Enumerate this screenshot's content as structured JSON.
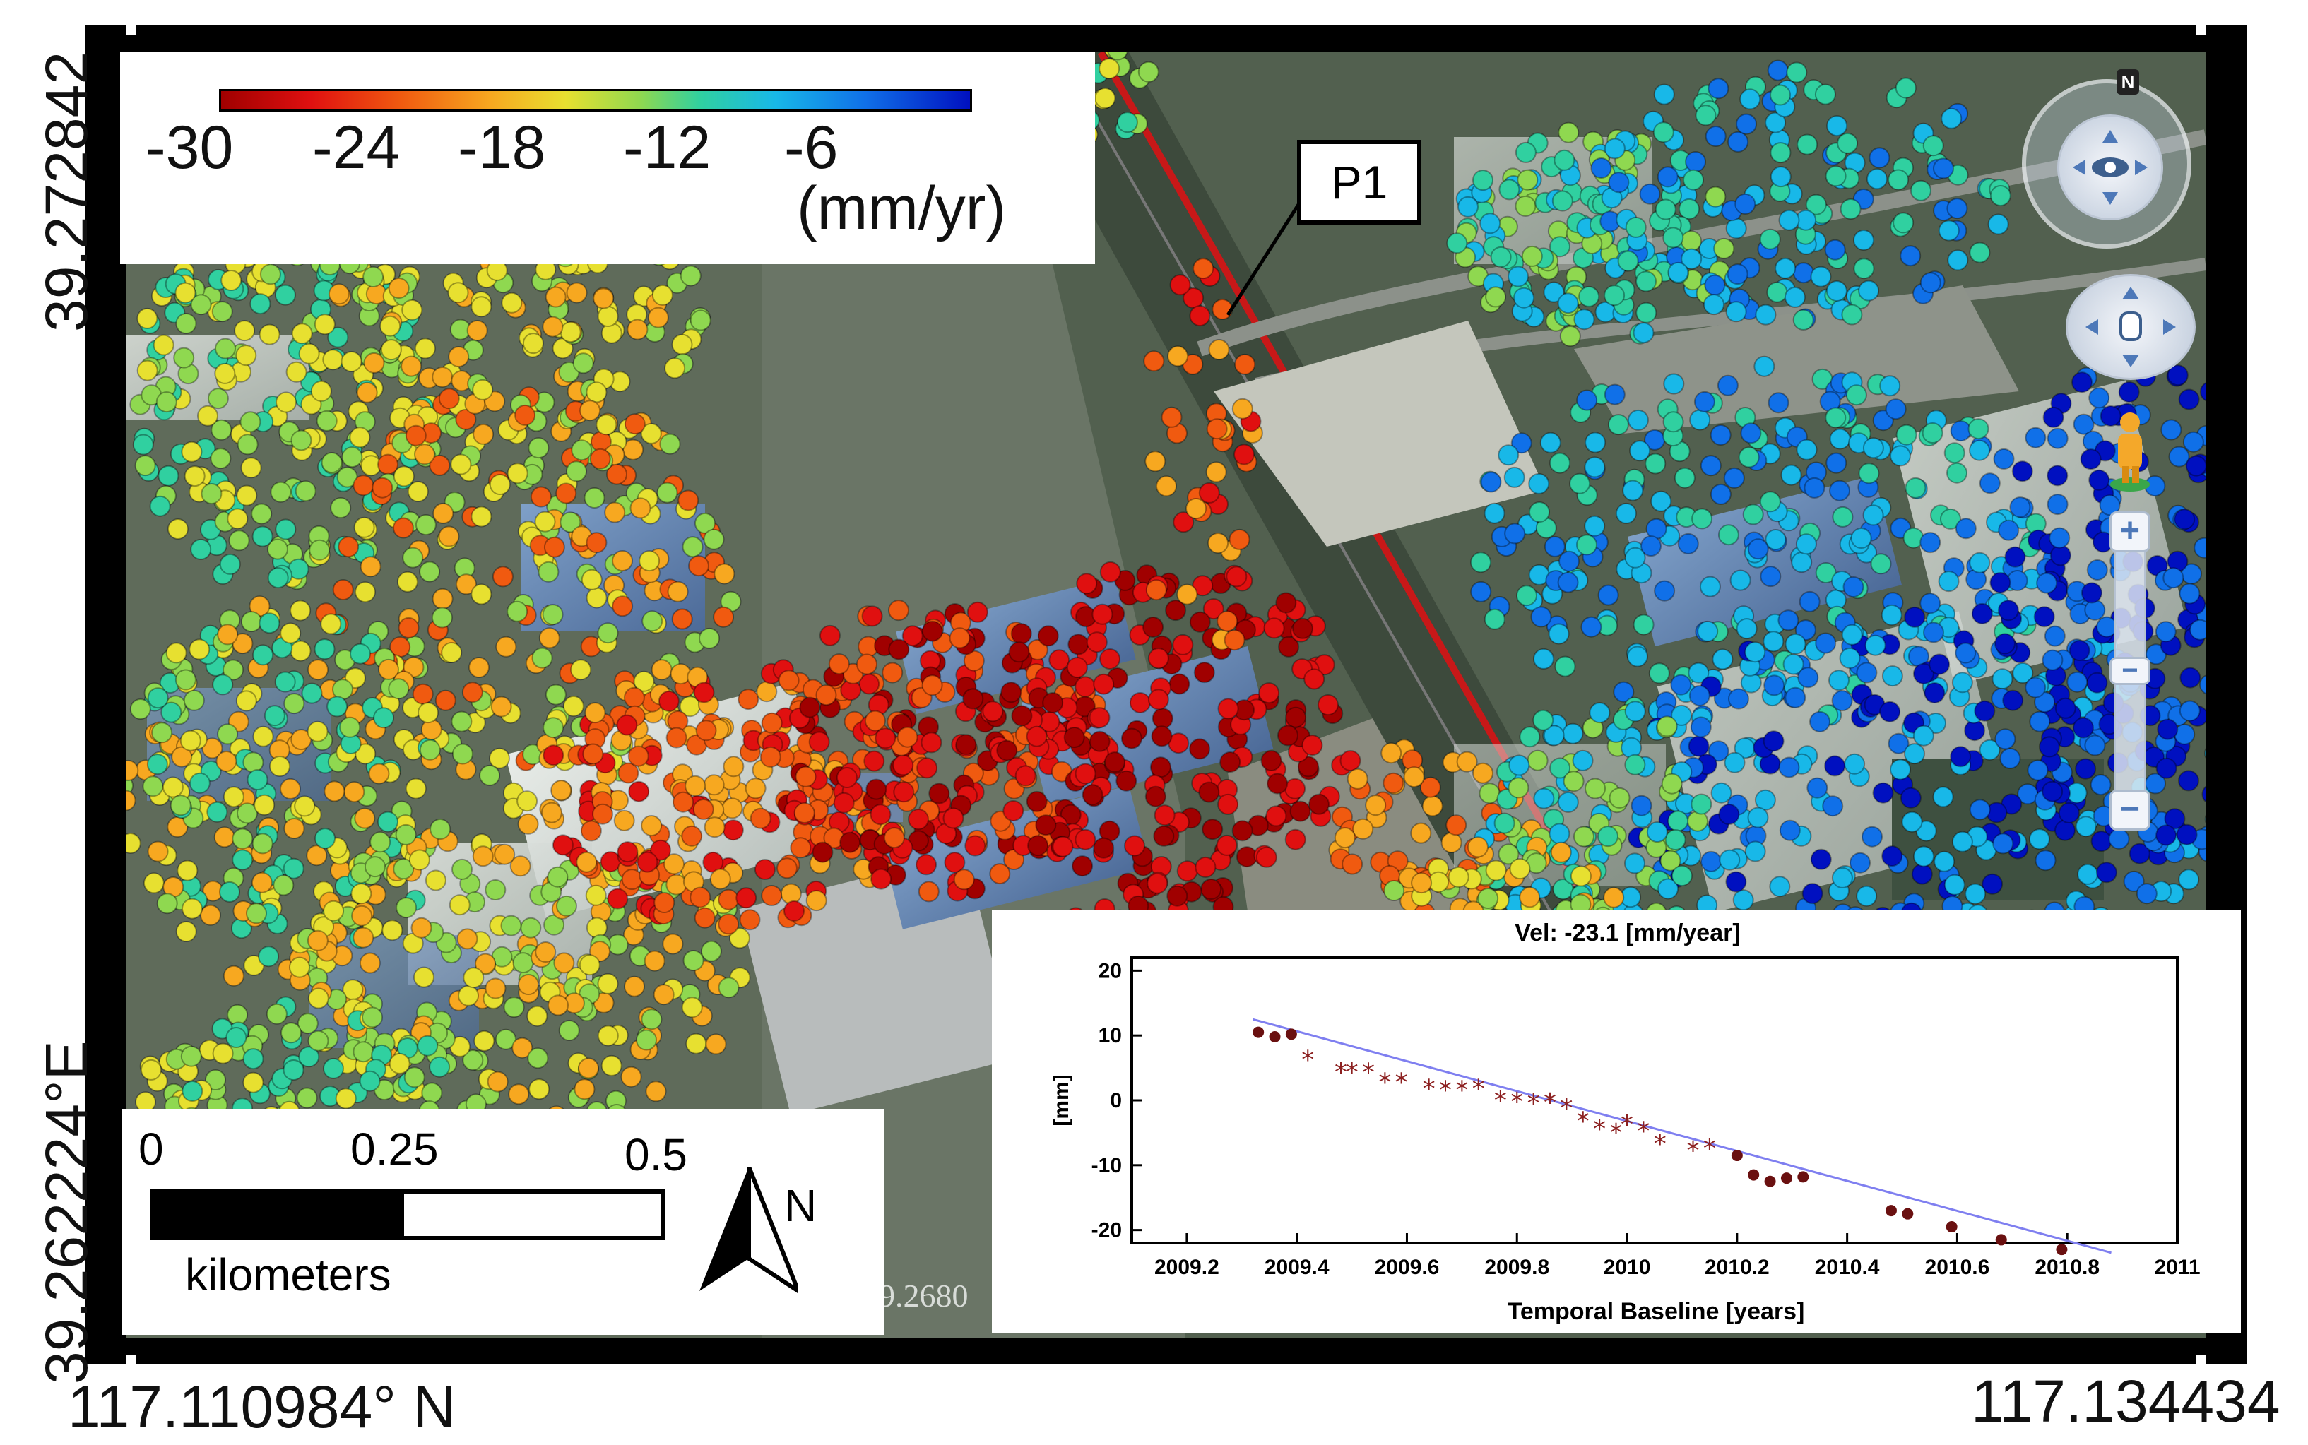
{
  "legend": {
    "ticks": [
      "-30",
      "-24",
      "-18",
      "-12",
      "-6"
    ],
    "unit": "(mm/yr)",
    "colors": [
      "#a00000",
      "#e01010",
      "#f05a10",
      "#f7a820",
      "#e7e030",
      "#8fd850",
      "#30d0a0",
      "#18b8e8",
      "#1070e8",
      "#0010c0"
    ]
  },
  "callout": {
    "label": "P1"
  },
  "scale": {
    "labels": [
      "0",
      "0.25",
      "0.5"
    ],
    "unit": "kilometers",
    "north": "N"
  },
  "coordinates": {
    "top_left_lat": "39.272842",
    "bottom_left_lat": "39.262224°E",
    "bottom_left_lon": "117.110984° N",
    "bottom_right_lon": "117.134434",
    "map_overlay_text": "9.2680"
  },
  "navigation": {
    "compass_label": "N",
    "zoom_in": "+",
    "zoom_out": "−"
  },
  "chart_data": {
    "type": "scatter",
    "title": "Vel: -23.1 [mm/year]",
    "xlabel": "Temporal Baseline [years]",
    "ylabel": "[mm]",
    "xlim": [
      2009.2,
      2011
    ],
    "ylim": [
      -22,
      22
    ],
    "xticks": [
      "2009.2",
      "2009.4",
      "2009.6",
      "2009.8",
      "2010",
      "2010.2",
      "2010.4",
      "2010.6",
      "2010.8",
      "2011"
    ],
    "yticks": [
      "20",
      "10",
      "0",
      "-10",
      "-20"
    ],
    "points": [
      {
        "x": 2009.33,
        "y": 10.5,
        "m": "dot"
      },
      {
        "x": 2009.36,
        "y": 9.8,
        "m": "dot"
      },
      {
        "x": 2009.39,
        "y": 10.2,
        "m": "dot"
      },
      {
        "x": 2009.42,
        "y": 6.5,
        "m": "star"
      },
      {
        "x": 2009.48,
        "y": 4.6,
        "m": "star"
      },
      {
        "x": 2009.5,
        "y": 4.6,
        "m": "star"
      },
      {
        "x": 2009.53,
        "y": 4.5,
        "m": "star"
      },
      {
        "x": 2009.56,
        "y": 3.0,
        "m": "star"
      },
      {
        "x": 2009.59,
        "y": 3.0,
        "m": "star"
      },
      {
        "x": 2009.64,
        "y": 2.0,
        "m": "star"
      },
      {
        "x": 2009.67,
        "y": 1.8,
        "m": "star"
      },
      {
        "x": 2009.7,
        "y": 1.8,
        "m": "star"
      },
      {
        "x": 2009.73,
        "y": 2.0,
        "m": "star"
      },
      {
        "x": 2009.77,
        "y": 0.2,
        "m": "star"
      },
      {
        "x": 2009.8,
        "y": 0.0,
        "m": "star"
      },
      {
        "x": 2009.83,
        "y": -0.2,
        "m": "star"
      },
      {
        "x": 2009.86,
        "y": -0.1,
        "m": "star"
      },
      {
        "x": 2009.89,
        "y": -1.0,
        "m": "star"
      },
      {
        "x": 2009.92,
        "y": -3.0,
        "m": "star"
      },
      {
        "x": 2009.95,
        "y": -4.2,
        "m": "star"
      },
      {
        "x": 2009.98,
        "y": -4.8,
        "m": "star"
      },
      {
        "x": 2010.0,
        "y": -3.5,
        "m": "star"
      },
      {
        "x": 2010.03,
        "y": -4.5,
        "m": "star"
      },
      {
        "x": 2010.06,
        "y": -6.5,
        "m": "star"
      },
      {
        "x": 2010.12,
        "y": -7.5,
        "m": "star"
      },
      {
        "x": 2010.15,
        "y": -7.2,
        "m": "star"
      },
      {
        "x": 2010.2,
        "y": -8.5,
        "m": "dot"
      },
      {
        "x": 2010.23,
        "y": -11.5,
        "m": "dot"
      },
      {
        "x": 2010.26,
        "y": -12.5,
        "m": "dot"
      },
      {
        "x": 2010.29,
        "y": -12.0,
        "m": "dot"
      },
      {
        "x": 2010.32,
        "y": -11.8,
        "m": "dot"
      },
      {
        "x": 2010.48,
        "y": -17.0,
        "m": "dot"
      },
      {
        "x": 2010.51,
        "y": -17.5,
        "m": "dot"
      },
      {
        "x": 2010.59,
        "y": -19.5,
        "m": "dot"
      },
      {
        "x": 2010.68,
        "y": -21.5,
        "m": "dot"
      },
      {
        "x": 2010.79,
        "y": -23.0,
        "m": "dot"
      }
    ],
    "trend": {
      "x": [
        2009.32,
        2010.88
      ],
      "y": [
        12.5,
        -23.5
      ]
    }
  }
}
